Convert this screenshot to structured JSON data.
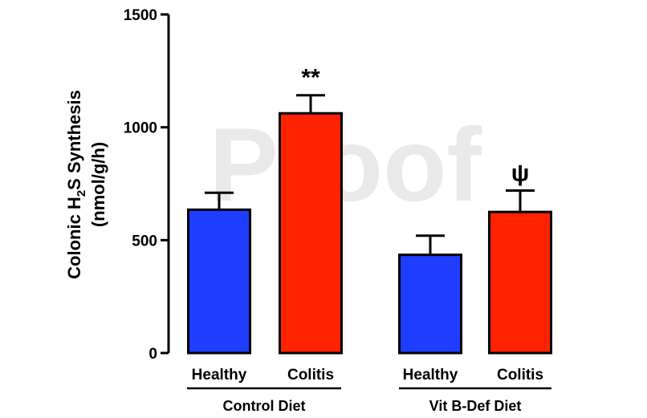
{
  "watermark": "Proof",
  "chart_data": {
    "type": "bar",
    "ylabel": {
      "line1_prefix": "Colonic H",
      "line1_sub": "2",
      "line1_suffix": "S Synthesis",
      "line2": "(nmol/g/h)"
    },
    "ylim": [
      0,
      1500
    ],
    "yticks": [
      0,
      500,
      1000,
      1500
    ],
    "groups": [
      {
        "name": "Control Diet",
        "categories": [
          "Healthy",
          "Colitis"
        ]
      },
      {
        "name": "Vit B-Def Diet",
        "categories": [
          "Healthy",
          "Colitis"
        ]
      }
    ],
    "bars": [
      {
        "group": "Control Diet",
        "category": "Healthy",
        "value": 635,
        "error": 75,
        "color": "#1f3dff",
        "annotation": ""
      },
      {
        "group": "Control Diet",
        "category": "Colitis",
        "value": 1062,
        "error": 80,
        "color": "#ff2200",
        "annotation": "**"
      },
      {
        "group": "Vit B-Def Diet",
        "category": "Healthy",
        "value": 435,
        "error": 85,
        "color": "#1f3dff",
        "annotation": ""
      },
      {
        "group": "Vit B-Def Diet",
        "category": "Colitis",
        "value": 625,
        "error": 95,
        "color": "#ff2200",
        "annotation": "ψ"
      }
    ]
  }
}
